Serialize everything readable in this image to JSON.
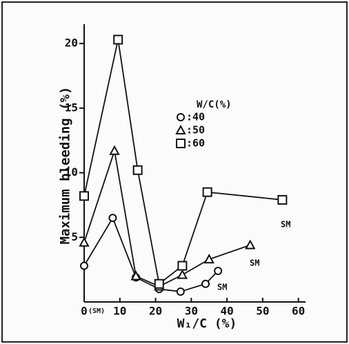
{
  "chart_data": {
    "type": "line",
    "ylabel": "Maximum bleeding (%)",
    "xlabel": "W₁/C (%)",
    "legend_title": "W/C(%)",
    "xlim": [
      0,
      62
    ],
    "xticks": [
      0,
      10,
      20,
      30,
      40,
      50,
      60
    ],
    "ylim": [
      0,
      21.5
    ],
    "yticks": [
      5,
      10,
      15,
      20
    ],
    "color": "#111111",
    "series": [
      {
        "name": ":40",
        "marker": "circle",
        "x": [
          0,
          8,
          14.5,
          21,
          27,
          34,
          37.5
        ],
        "values": [
          2.8,
          6.5,
          1.9,
          1.0,
          0.8,
          1.4,
          2.4
        ]
      },
      {
        "name": ":50",
        "marker": "triangle",
        "x": [
          0,
          8.5,
          14.5,
          21,
          27.5,
          35,
          46.5
        ],
        "values": [
          4.6,
          11.7,
          2.0,
          1.2,
          2.1,
          3.3,
          4.4
        ]
      },
      {
        "name": ":60",
        "marker": "square",
        "x": [
          0,
          9.5,
          15,
          21,
          27.5,
          34.5,
          55.5
        ],
        "values": [
          8.2,
          20.3,
          10.2,
          1.4,
          2.8,
          8.5,
          7.9
        ]
      }
    ],
    "annotations": [
      "SM",
      "SM",
      "SM",
      "(SM)"
    ]
  }
}
